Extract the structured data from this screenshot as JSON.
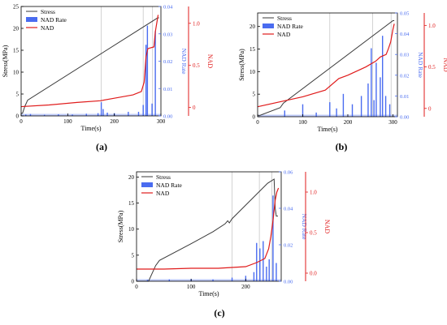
{
  "colors": {
    "stress": "#3a3a3a",
    "rate": "#4a6cf0",
    "nad": "#e01b1b",
    "frame": "#000000",
    "vline": "#c8c8c8"
  },
  "chart_data": [
    {
      "panel_label": "(a)",
      "type": "line",
      "legend": [
        "Stress",
        "NAD Rate",
        "NAD"
      ],
      "legend_position": "top-left",
      "xlabel": "Time(s)",
      "ylabel_left": "Stress(MPa)",
      "ylabel_right1": "NAD Rate",
      "ylabel_right2": "NAD",
      "xlim": [
        0,
        300
      ],
      "xticks": [
        "0",
        "100",
        "200",
        "300"
      ],
      "stress_ylim": [
        0,
        25
      ],
      "stress_ticks": [
        "0",
        "5",
        "10",
        "15",
        "20",
        "25"
      ],
      "rate_ylim": [
        0,
        0.04
      ],
      "rate_ticks": [
        "0.00",
        "0.01",
        "0.02",
        "0.03",
        "0.04"
      ],
      "nad_ylim": [
        -0.1,
        1.2
      ],
      "nad_ticks": [
        "0",
        "0.5",
        "1.0"
      ],
      "vlines": [
        172,
        262,
        282
      ],
      "series": [
        {
          "name": "Stress",
          "axis": "left",
          "x": [
            0,
            3,
            8,
            14,
            293,
            296
          ],
          "y": [
            0.6,
            0.6,
            2.2,
            3.6,
            22.4,
            22.4
          ]
        },
        {
          "name": "NAD",
          "axis": "right2",
          "x": [
            0,
            60,
            120,
            170,
            200,
            240,
            258,
            264,
            268,
            272,
            285,
            288,
            291,
            294
          ],
          "y": [
            0.01,
            0.03,
            0.06,
            0.08,
            0.11,
            0.15,
            0.19,
            0.3,
            0.6,
            0.7,
            0.72,
            0.9,
            1.0,
            1.1
          ]
        },
        {
          "name": "NAD Rate",
          "axis": "right1",
          "x": [
            10,
            20,
            50,
            80,
            110,
            140,
            165,
            172,
            176,
            185,
            200,
            230,
            252,
            262,
            268,
            271,
            281,
            288
          ],
          "y": [
            0.0005,
            0.0007,
            0.0004,
            0.0006,
            0.0005,
            0.0008,
            0.001,
            0.005,
            0.0025,
            0.0012,
            0.001,
            0.0015,
            0.0015,
            0.004,
            0.026,
            0.033,
            0.0045,
            0.031
          ]
        }
      ]
    },
    {
      "panel_label": "(b)",
      "type": "line",
      "legend": [
        "Stress",
        "NAD Rate",
        "NAD"
      ],
      "legend_position": "top-left",
      "xlabel": "Time(s)",
      "ylabel_left": "Stress(MPa)",
      "ylabel_right1": "NAD Rate",
      "ylabel_right2": "NAD",
      "xlim": [
        0,
        310
      ],
      "xticks": [
        "0",
        "100",
        "200",
        "300"
      ],
      "stress_ylim": [
        0,
        23
      ],
      "stress_ticks": [
        "0",
        "5",
        "10",
        "15",
        "20"
      ],
      "rate_ylim": [
        0,
        0.05
      ],
      "rate_ticks": [
        "0.00",
        "0.01",
        "0.02",
        "0.03",
        "0.04",
        "0.05"
      ],
      "nad_ylim": [
        -0.1,
        1.15
      ],
      "nad_ticks": [
        "0",
        "0.5",
        "1.0"
      ],
      "vlines": [
        160,
        255,
        296
      ],
      "series": [
        {
          "name": "Stress",
          "axis": "left",
          "x": [
            0,
            5,
            50,
            57,
            300,
            303
          ],
          "y": [
            0.3,
            0.3,
            2.0,
            3.0,
            21.3,
            21.3
          ]
        },
        {
          "name": "NAD",
          "axis": "right2",
          "x": [
            0,
            50,
            100,
            150,
            180,
            200,
            240,
            262,
            272,
            285,
            290,
            295,
            300,
            303
          ],
          "y": [
            0.02,
            0.08,
            0.14,
            0.22,
            0.36,
            0.4,
            0.5,
            0.57,
            0.62,
            0.65,
            0.72,
            0.8,
            0.95,
            1.02
          ]
        },
        {
          "name": "NAD Rate",
          "axis": "right1",
          "x": [
            60,
            100,
            130,
            160,
            175,
            190,
            210,
            230,
            245,
            252,
            258,
            263,
            272,
            277,
            284,
            293
          ],
          "y": [
            0.003,
            0.006,
            0.002,
            0.007,
            0.004,
            0.011,
            0.006,
            0.01,
            0.016,
            0.033,
            0.008,
            0.026,
            0.019,
            0.039,
            0.01,
            0.006
          ]
        }
      ]
    },
    {
      "panel_label": "(c)",
      "type": "line",
      "legend": [
        "Stress",
        "NAD Rate",
        "NAD"
      ],
      "legend_position": "top-left",
      "xlabel": "Time(s)",
      "ylabel_left": "Stress(MPa)",
      "ylabel_right1": "NAD Rate",
      "ylabel_right2": "NAD",
      "xlim": [
        0,
        265
      ],
      "xticks": [
        "0",
        "100",
        "200"
      ],
      "stress_ylim": [
        0,
        21
      ],
      "stress_ticks": [
        "0",
        "5",
        "10",
        "15",
        "20"
      ],
      "rate_ylim": [
        0,
        0.06
      ],
      "rate_ticks": [
        "0.00",
        "0.02",
        "0.04",
        "0.06"
      ],
      "nad_ylim": [
        -0.1,
        1.25
      ],
      "nad_ticks": [
        "0.0",
        "0.5",
        "1.0"
      ],
      "vlines": [
        175,
        225,
        248
      ],
      "series": [
        {
          "name": "Stress",
          "axis": "left",
          "x": [
            0,
            22,
            35,
            42,
            100,
            140,
            162,
            167,
            170,
            175,
            240,
            252,
            254,
            256,
            259
          ],
          "y": [
            0,
            0,
            3.0,
            4.0,
            7.2,
            9.5,
            11.0,
            11.6,
            11.2,
            12.0,
            18.8,
            19.6,
            14.0,
            12.5,
            12.5
          ]
        },
        {
          "name": "NAD",
          "axis": "right2",
          "x": [
            0,
            50,
            100,
            150,
            200,
            220,
            235,
            242,
            246,
            250,
            254,
            257,
            260
          ],
          "y": [
            0.05,
            0.05,
            0.06,
            0.06,
            0.08,
            0.13,
            0.18,
            0.3,
            0.45,
            0.65,
            0.9,
            1.0,
            1.05
          ]
        },
        {
          "name": "NAD Rate",
          "axis": "right1",
          "x": [
            20,
            60,
            100,
            140,
            175,
            200,
            215,
            220,
            226,
            232,
            238,
            243,
            250,
            256
          ],
          "y": [
            0.0008,
            0.001,
            0.0012,
            0.001,
            0.002,
            0.003,
            0.005,
            0.021,
            0.018,
            0.022,
            0.008,
            0.012,
            0.047,
            0.01
          ]
        }
      ]
    }
  ]
}
